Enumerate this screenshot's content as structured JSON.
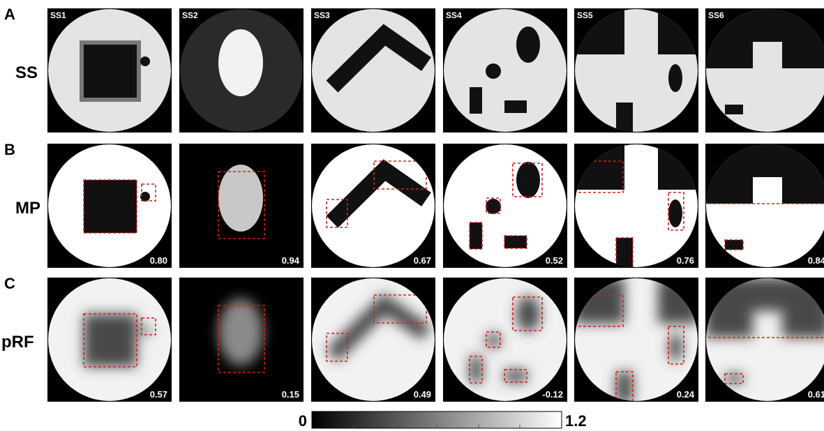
{
  "rows": [
    {
      "letter": "A",
      "name": "SS"
    },
    {
      "letter": "B",
      "name": "MP"
    },
    {
      "letter": "C",
      "name": "pRF"
    }
  ],
  "columns": [
    "SS1",
    "SS2",
    "SS3",
    "SS4",
    "SS5",
    "SS6"
  ],
  "scores": {
    "MP": [
      "0.80",
      "0.94",
      "0.67",
      "0.52",
      "0.76",
      "0.84"
    ],
    "pRF": [
      "0.57",
      "0.15",
      "0.49",
      "-0.12",
      "0.24",
      "0.61"
    ]
  },
  "colorbar": {
    "min": "0",
    "max": "1.2"
  }
}
